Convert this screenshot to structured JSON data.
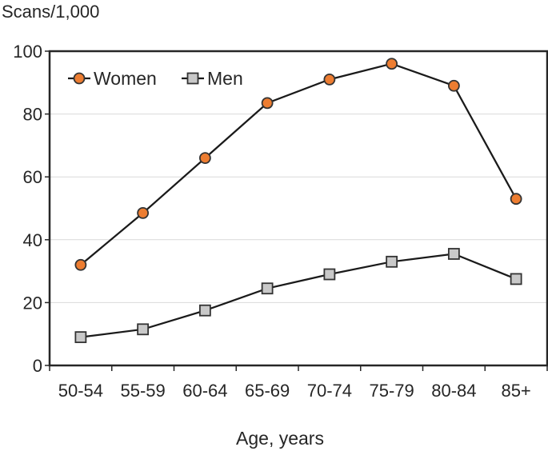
{
  "chart_data": {
    "type": "line",
    "title": "Scans/1,000",
    "xlabel": "Age, years",
    "ylabel": "",
    "categories": [
      "50-54",
      "55-59",
      "60-64",
      "65-69",
      "70-74",
      "75-79",
      "80-84",
      "85+"
    ],
    "series": [
      {
        "name": "Women",
        "values": [
          32,
          48.5,
          66,
          83.5,
          91,
          96,
          89,
          53
        ],
        "marker": "circle",
        "marker_fill": "#ED7D31"
      },
      {
        "name": "Men",
        "values": [
          9,
          11.5,
          17.5,
          24.5,
          29,
          33,
          35.5,
          27.5
        ],
        "marker": "square",
        "marker_fill": "#C9C9C9"
      }
    ],
    "ylim": [
      0,
      100
    ],
    "ytick_step": 20,
    "grid": "horizontal",
    "legend_position": "top-left-inside",
    "colors": {
      "line": "#1a1a1a",
      "gridline": "#D9D9D9",
      "axis": "#262626",
      "text": "#262626",
      "marker_stroke": "#333333"
    }
  }
}
